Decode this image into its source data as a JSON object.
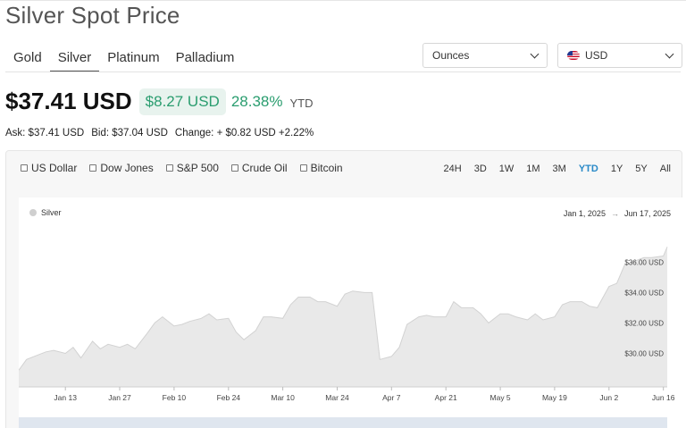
{
  "page": {
    "title": "Silver Spot Price"
  },
  "metal_tabs": [
    {
      "label": "Gold",
      "active": false
    },
    {
      "label": "Silver",
      "active": true
    },
    {
      "label": "Platinum",
      "active": false
    },
    {
      "label": "Palladium",
      "active": false
    }
  ],
  "units_select": {
    "value": "Ounces"
  },
  "currency_select": {
    "value": "USD",
    "flag_icon": "us-flag-icon"
  },
  "price": {
    "main": "$37.41 USD",
    "change": "$8.27 USD",
    "change_pct": "28.38%",
    "period": "YTD"
  },
  "quote": {
    "ask": "Ask: $37.41 USD",
    "bid": "Bid: $37.04 USD",
    "change": "Change: + $0.82 USD +2.22%"
  },
  "compare_options": [
    "US Dollar",
    "Dow Jones",
    "S&P 500",
    "Crude Oil",
    "Bitcoin"
  ],
  "range_buttons": [
    {
      "label": "24H",
      "active": false
    },
    {
      "label": "3D",
      "active": false
    },
    {
      "label": "1W",
      "active": false
    },
    {
      "label": "1M",
      "active": false
    },
    {
      "label": "3M",
      "active": false
    },
    {
      "label": "YTD",
      "active": true
    },
    {
      "label": "1Y",
      "active": false
    },
    {
      "label": "5Y",
      "active": false
    },
    {
      "label": "All",
      "active": false
    }
  ],
  "colors": {
    "accent_green": "#2a9d6f",
    "active_range": "#2a8ac8",
    "area_fill": "#e9e9e9",
    "area_line": "#d2d2d2"
  },
  "chart_data": {
    "type": "area",
    "legend_position": "top-left",
    "grid": false,
    "series": [
      {
        "name": "Silver",
        "points": [
          [
            "2025-01-01",
            28.9
          ],
          [
            "2025-01-03",
            29.6
          ],
          [
            "2025-01-06",
            29.9
          ],
          [
            "2025-01-08",
            30.1
          ],
          [
            "2025-01-10",
            30.2
          ],
          [
            "2025-01-13",
            30.0
          ],
          [
            "2025-01-15",
            30.4
          ],
          [
            "2025-01-17",
            29.7
          ],
          [
            "2025-01-20",
            30.8
          ],
          [
            "2025-01-22",
            30.3
          ],
          [
            "2025-01-24",
            30.6
          ],
          [
            "2025-01-27",
            30.4
          ],
          [
            "2025-01-29",
            30.6
          ],
          [
            "2025-01-31",
            30.3
          ],
          [
            "2025-02-03",
            31.3
          ],
          [
            "2025-02-05",
            32.0
          ],
          [
            "2025-02-07",
            32.4
          ],
          [
            "2025-02-10",
            31.8
          ],
          [
            "2025-02-12",
            31.9
          ],
          [
            "2025-02-14",
            32.1
          ],
          [
            "2025-02-17",
            32.3
          ],
          [
            "2025-02-19",
            32.6
          ],
          [
            "2025-02-21",
            32.2
          ],
          [
            "2025-02-24",
            32.3
          ],
          [
            "2025-02-26",
            31.4
          ],
          [
            "2025-02-28",
            30.9
          ],
          [
            "2025-03-03",
            31.5
          ],
          [
            "2025-03-05",
            32.4
          ],
          [
            "2025-03-07",
            32.4
          ],
          [
            "2025-03-10",
            32.3
          ],
          [
            "2025-03-12",
            33.2
          ],
          [
            "2025-03-14",
            33.7
          ],
          [
            "2025-03-17",
            33.7
          ],
          [
            "2025-03-19",
            33.4
          ],
          [
            "2025-03-21",
            33.4
          ],
          [
            "2025-03-24",
            33.1
          ],
          [
            "2025-03-26",
            33.9
          ],
          [
            "2025-03-28",
            34.1
          ],
          [
            "2025-03-31",
            34.0
          ],
          [
            "2025-04-02",
            34.0
          ],
          [
            "2025-04-04",
            29.6
          ],
          [
            "2025-04-07",
            29.8
          ],
          [
            "2025-04-09",
            30.4
          ],
          [
            "2025-04-11",
            31.9
          ],
          [
            "2025-04-14",
            32.4
          ],
          [
            "2025-04-16",
            32.5
          ],
          [
            "2025-04-18",
            32.4
          ],
          [
            "2025-04-21",
            32.4
          ],
          [
            "2025-04-23",
            33.4
          ],
          [
            "2025-04-25",
            33.0
          ],
          [
            "2025-04-28",
            33.0
          ],
          [
            "2025-04-30",
            32.6
          ],
          [
            "2025-05-02",
            32.0
          ],
          [
            "2025-05-05",
            32.6
          ],
          [
            "2025-05-07",
            32.6
          ],
          [
            "2025-05-09",
            32.4
          ],
          [
            "2025-05-12",
            32.2
          ],
          [
            "2025-05-14",
            32.6
          ],
          [
            "2025-05-16",
            32.2
          ],
          [
            "2025-05-19",
            32.4
          ],
          [
            "2025-05-21",
            33.2
          ],
          [
            "2025-05-23",
            33.4
          ],
          [
            "2025-05-26",
            33.4
          ],
          [
            "2025-05-28",
            33.1
          ],
          [
            "2025-05-30",
            33.0
          ],
          [
            "2025-06-02",
            34.4
          ],
          [
            "2025-06-04",
            34.6
          ],
          [
            "2025-06-06",
            35.8
          ],
          [
            "2025-06-09",
            36.1
          ],
          [
            "2025-06-11",
            36.3
          ],
          [
            "2025-06-13",
            36.3
          ],
          [
            "2025-06-16",
            36.4
          ],
          [
            "2025-06-17",
            37.0
          ]
        ]
      }
    ],
    "date_range": {
      "start": "Jan 1, 2025",
      "end": "Jun 17, 2025"
    },
    "x_ticks": [
      [
        "2025-01-13",
        "Jan 13"
      ],
      [
        "2025-01-27",
        "Jan 27"
      ],
      [
        "2025-02-10",
        "Feb 10"
      ],
      [
        "2025-02-24",
        "Feb 24"
      ],
      [
        "2025-03-10",
        "Mar 10"
      ],
      [
        "2025-03-24",
        "Mar 24"
      ],
      [
        "2025-04-07",
        "Apr 7"
      ],
      [
        "2025-04-21",
        "Apr 21"
      ],
      [
        "2025-05-05",
        "May 5"
      ],
      [
        "2025-05-19",
        "May 19"
      ],
      [
        "2025-06-02",
        "Jun 2"
      ],
      [
        "2025-06-16",
        "Jun 16"
      ]
    ],
    "y_ticks": [
      [
        30,
        "$30.00 USD"
      ],
      [
        32,
        "$32.00 USD"
      ],
      [
        34,
        "$34.00 USD"
      ],
      [
        36,
        "$36.00 USD"
      ]
    ],
    "xlim": [
      "2025-01-01",
      "2025-06-17"
    ],
    "ylim": [
      27.8,
      38.6
    ]
  }
}
